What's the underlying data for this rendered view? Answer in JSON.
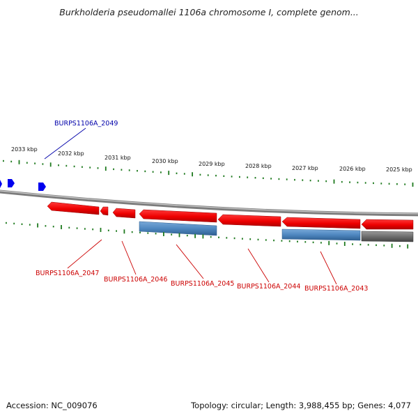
{
  "title": "Burkholderia pseudomallei 1106a chromosome I, complete genom...",
  "footer": {
    "accession": "Accession: NC_009076",
    "summary": "Topology: circular; Length: 3,988,455 bp; Genes: 4,077"
  },
  "colors": {
    "forward_gene": "#0000ee",
    "reverse_gene": "#ee0000",
    "cds_blue": "#4f88c0",
    "cds_gray": "#6e6e6e",
    "backbone": "#8a8a8a",
    "gc_dots": "#1f7a1f",
    "label_forward": "#0000aa",
    "label_reverse": "#cc0000"
  },
  "ticks": [
    {
      "label": "2033 kbp"
    },
    {
      "label": "2032 kbp"
    },
    {
      "label": "2031 kbp"
    },
    {
      "label": "2030 kbp"
    },
    {
      "label": "2029 kbp"
    },
    {
      "label": "2028 kbp"
    },
    {
      "label": "2027 kbp"
    },
    {
      "label": "2026 kbp"
    },
    {
      "label": "2025 kbp"
    }
  ],
  "gene_labels": [
    {
      "id": "BURPS1106A_2049",
      "strand": "forward"
    },
    {
      "id": "BURPS1106A_2047",
      "strand": "reverse"
    },
    {
      "id": "BURPS1106A_2046",
      "strand": "reverse"
    },
    {
      "id": "BURPS1106A_2045",
      "strand": "reverse"
    },
    {
      "id": "BURPS1106A_2044",
      "strand": "reverse"
    },
    {
      "id": "BURPS1106A_2043",
      "strand": "reverse"
    }
  ]
}
